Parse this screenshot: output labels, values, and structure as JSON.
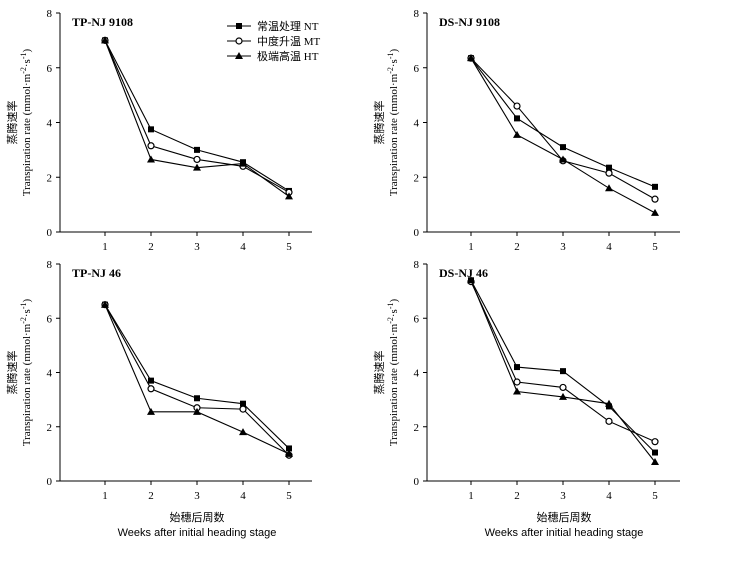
{
  "chart_data": [
    {
      "type": "line",
      "title": "TP-NJ 9108",
      "ylabel_cn": "蒸腾速率",
      "ylabel_en": "Transpiration rate (mmol·m-2·s-1)",
      "ylim": [
        0,
        8
      ],
      "yticks": [
        0,
        2,
        4,
        6,
        8
      ],
      "x": [
        1,
        2,
        3,
        4,
        5
      ],
      "series": [
        {
          "name": "常温处理 NT",
          "marker": "square",
          "values": [
            7.0,
            3.75,
            3.0,
            2.55,
            1.5
          ]
        },
        {
          "name": "中度升温 MT",
          "marker": "circle",
          "values": [
            7.0,
            3.15,
            2.65,
            2.4,
            1.45
          ]
        },
        {
          "name": "极端高温 HT",
          "marker": "triangle",
          "values": [
            7.0,
            2.65,
            2.35,
            2.5,
            1.3
          ]
        }
      ]
    },
    {
      "type": "line",
      "title": "DS-NJ 9108",
      "ylabel_cn": "蒸腾速率",
      "ylabel_en": "Transpiration rate (mmol·m-2·s-1)",
      "ylim": [
        0,
        8
      ],
      "yticks": [
        0,
        2,
        4,
        6,
        8
      ],
      "x": [
        1,
        2,
        3,
        4,
        5
      ],
      "series": [
        {
          "name": "常温处理 NT",
          "marker": "square",
          "values": [
            6.35,
            4.15,
            3.1,
            2.35,
            1.65
          ]
        },
        {
          "name": "中度升温 MT",
          "marker": "circle",
          "values": [
            6.35,
            4.6,
            2.6,
            2.15,
            1.2
          ]
        },
        {
          "name": "极端高温 HT",
          "marker": "triangle",
          "values": [
            6.35,
            3.55,
            2.65,
            1.6,
            0.7
          ]
        }
      ]
    },
    {
      "type": "line",
      "title": "TP-NJ 46",
      "ylabel_cn": "蒸腾速率",
      "ylabel_en": "Transpiration rate (mmol·m-2·s-1)",
      "ylim": [
        0,
        8
      ],
      "yticks": [
        0,
        2,
        4,
        6,
        8
      ],
      "x": [
        1,
        2,
        3,
        4,
        5
      ],
      "series": [
        {
          "name": "常温处理 NT",
          "marker": "square",
          "values": [
            6.5,
            3.7,
            3.05,
            2.85,
            1.2
          ]
        },
        {
          "name": "中度升温 MT",
          "marker": "circle",
          "values": [
            6.5,
            3.4,
            2.7,
            2.65,
            0.95
          ]
        },
        {
          "name": "极端高温 HT",
          "marker": "triangle",
          "values": [
            6.5,
            2.55,
            2.55,
            1.8,
            1.0
          ]
        }
      ]
    },
    {
      "type": "line",
      "title": "DS-NJ 46",
      "ylabel_cn": "蒸腾速率",
      "ylabel_en": "Transpiration rate (mmol·m-2·s-1)",
      "ylim": [
        0,
        8
      ],
      "yticks": [
        0,
        2,
        4,
        6,
        8
      ],
      "x": [
        1,
        2,
        3,
        4,
        5
      ],
      "series": [
        {
          "name": "常温处理 NT",
          "marker": "square",
          "values": [
            7.4,
            4.2,
            4.05,
            2.75,
            1.05
          ]
        },
        {
          "name": "中度升温 MT",
          "marker": "circle",
          "values": [
            7.35,
            3.65,
            3.45,
            2.2,
            1.45
          ]
        },
        {
          "name": "极端高温 HT",
          "marker": "triangle",
          "values": [
            7.4,
            3.3,
            3.1,
            2.85,
            0.7
          ]
        }
      ]
    }
  ],
  "xlabel_cn": "始穗后周数",
  "xlabel_en": "Weeks after initial heading stage",
  "legend": {
    "placement": "top-left panel, upper middle",
    "entries": [
      {
        "label": "常温处理 NT",
        "marker": "square"
      },
      {
        "label": "中度升温 MT",
        "marker": "circle"
      },
      {
        "label": "极端高温 HT",
        "marker": "triangle"
      }
    ]
  }
}
